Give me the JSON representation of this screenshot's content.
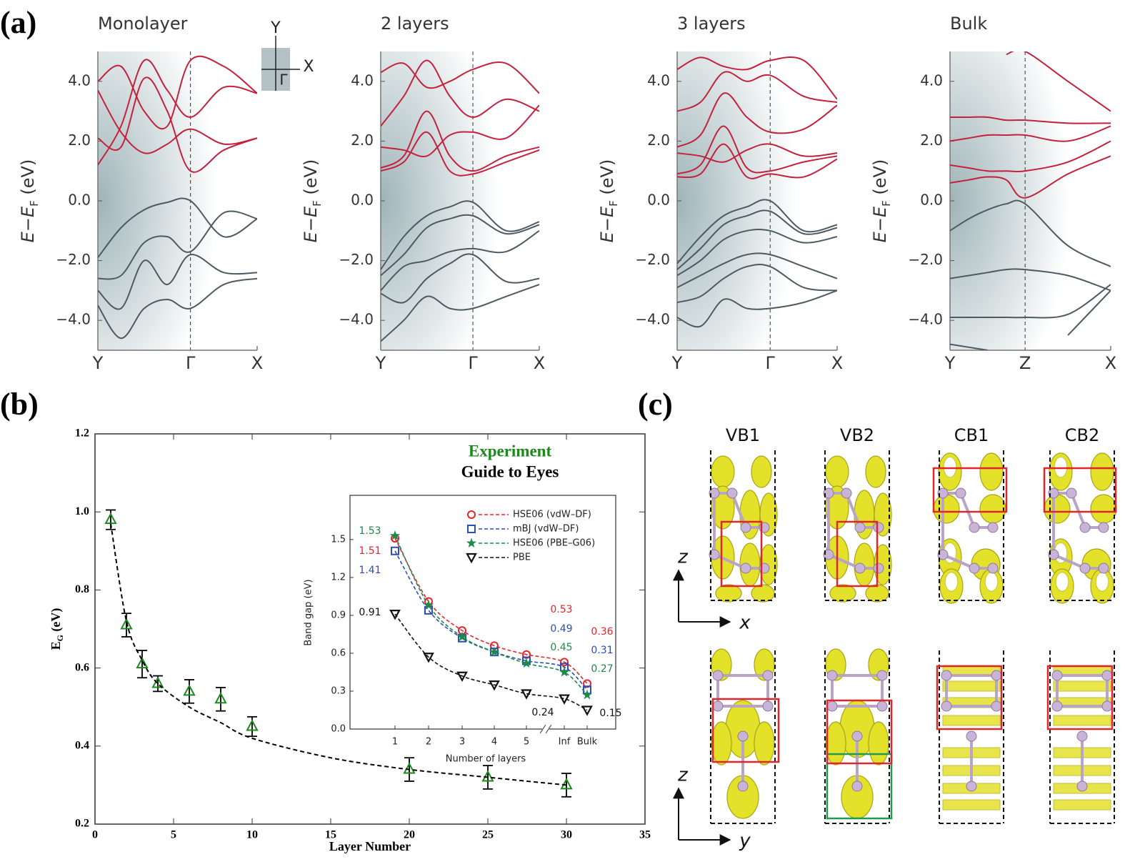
{
  "panel_labels": [
    "(a)",
    "(b)",
    "(c)"
  ],
  "axes_icon": [
    "Y",
    "X",
    "Γ"
  ],
  "chart_data": [
    {
      "type": "line",
      "title": "Monolayer",
      "ylabel": [
        "E−E",
        "F",
        " (eV)"
      ],
      "xlim": [
        0,
        1.72
      ],
      "xticks": [
        {
          "value": 0,
          "label": "Y"
        },
        {
          "value": 1,
          "label": "Γ"
        },
        {
          "value": 1.72,
          "label": "X"
        }
      ],
      "ylim": [
        -5,
        5
      ],
      "yticks": [
        {
          "value": 4,
          "label": "4.0"
        },
        {
          "value": 2,
          "label": "2.0"
        },
        {
          "value": 0,
          "label": "0.0"
        },
        {
          "value": -2,
          "label": "−2.0"
        },
        {
          "value": -4,
          "label": "−4.0"
        }
      ],
      "x": [
        0,
        0.25,
        0.5,
        0.75,
        1,
        1.36,
        1.72
      ],
      "series": [
        {
          "color": "#c4213d",
          "values": [
            1.2,
            2.5,
            4.7,
            3.7,
            2.8,
            3.8,
            3.6
          ]
        },
        {
          "color": "#c4213d",
          "values": [
            2.1,
            1.8,
            4.1,
            3.0,
            1.0,
            1.7,
            2.1
          ]
        },
        {
          "color": "#c4213d",
          "values": [
            3.7,
            2.3,
            1.6,
            1.9,
            2.4,
            1.9,
            2.1
          ]
        },
        {
          "color": "#c4213d",
          "values": [
            4.0,
            4.5,
            3.0,
            2.5,
            4.7,
            4.5,
            3.6
          ]
        },
        {
          "color": "#4d5a62",
          "values": [
            -1.9,
            -0.9,
            -0.3,
            -0.05,
            0.0,
            -1.2,
            -0.6
          ]
        },
        {
          "color": "#4d5a62",
          "values": [
            -2.6,
            -2.5,
            -1.4,
            -1.2,
            -1.7,
            -0.4,
            -0.6
          ]
        },
        {
          "color": "#4d5a62",
          "values": [
            -3.0,
            -3.6,
            -2.0,
            -2.8,
            -1.8,
            -2.4,
            -2.4
          ]
        },
        {
          "color": "#4d5a62",
          "values": [
            -3.5,
            -4.6,
            -3.6,
            -3.3,
            -3.6,
            -2.8,
            -2.6
          ]
        }
      ]
    },
    {
      "type": "line",
      "title": "2 layers",
      "ylabel": [
        "E−E",
        "F",
        " (eV)"
      ],
      "xlim": [
        0,
        1.72
      ],
      "xticks": [
        {
          "value": 0,
          "label": "Y"
        },
        {
          "value": 1,
          "label": "Γ"
        },
        {
          "value": 1.72,
          "label": "X"
        }
      ],
      "ylim": [
        -5,
        5
      ],
      "yticks": [
        {
          "value": 4,
          "label": "4.0"
        },
        {
          "value": 2,
          "label": "2.0"
        },
        {
          "value": 0,
          "label": "0.0"
        },
        {
          "value": -2,
          "label": "−2.0"
        },
        {
          "value": -4,
          "label": "−4.0"
        }
      ],
      "x": [
        0,
        0.25,
        0.5,
        0.75,
        1,
        1.36,
        1.72
      ],
      "series": [
        {
          "color": "#c4213d",
          "values": [
            1.0,
            1.3,
            2.3,
            1.0,
            0.9,
            1.3,
            1.7
          ]
        },
        {
          "color": "#c4213d",
          "values": [
            1.1,
            1.5,
            3.0,
            1.5,
            1.0,
            1.5,
            1.8
          ]
        },
        {
          "color": "#c4213d",
          "values": [
            1.8,
            1.7,
            1.5,
            2.2,
            2.3,
            2.1,
            3.2
          ]
        },
        {
          "color": "#c4213d",
          "values": [
            2.5,
            3.5,
            4.7,
            3.5,
            2.8,
            3.4,
            3.0
          ]
        },
        {
          "color": "#c4213d",
          "values": [
            4.3,
            4.6,
            3.8,
            4.0,
            4.4,
            4.6,
            3.6
          ]
        },
        {
          "color": "#4d5a62",
          "values": [
            -2.3,
            -1.2,
            -0.5,
            -0.2,
            -0.05,
            -1.0,
            -0.7
          ]
        },
        {
          "color": "#4d5a62",
          "values": [
            -2.5,
            -1.8,
            -0.9,
            -0.6,
            -0.5,
            -1.1,
            -0.8
          ]
        },
        {
          "color": "#4d5a62",
          "values": [
            -3.0,
            -2.2,
            -2.0,
            -1.7,
            -1.6,
            -1.7,
            -1.0
          ]
        },
        {
          "color": "#4d5a62",
          "values": [
            -3.1,
            -3.4,
            -2.6,
            -2.1,
            -1.8,
            -2.7,
            -2.6
          ]
        },
        {
          "color": "#4d5a62",
          "values": [
            -4.7,
            -4.0,
            -3.2,
            -3.6,
            -3.6,
            -3.2,
            -2.8
          ]
        }
      ]
    },
    {
      "type": "line",
      "title": "3 layers",
      "ylabel": [
        "E−E",
        "F",
        " (eV)"
      ],
      "xlim": [
        0,
        1.72
      ],
      "xticks": [
        {
          "value": 0,
          "label": "Y"
        },
        {
          "value": 1,
          "label": "Γ"
        },
        {
          "value": 1.72,
          "label": "X"
        }
      ],
      "ylim": [
        -5,
        5
      ],
      "yticks": [
        {
          "value": 4,
          "label": "4.0"
        },
        {
          "value": 2,
          "label": "2.0"
        },
        {
          "value": 0,
          "label": "0.0"
        },
        {
          "value": -2,
          "label": "−2.0"
        },
        {
          "value": -4,
          "label": "−4.0"
        }
      ],
      "x": [
        0,
        0.25,
        0.5,
        0.75,
        1,
        1.36,
        1.72
      ],
      "series": [
        {
          "color": "#c4213d",
          "values": [
            0.8,
            0.9,
            1.9,
            0.8,
            0.9,
            0.8,
            1.4
          ]
        },
        {
          "color": "#c4213d",
          "values": [
            0.9,
            1.2,
            2.5,
            1.1,
            1.0,
            1.3,
            1.5
          ]
        },
        {
          "color": "#c4213d",
          "values": [
            1.6,
            1.5,
            1.3,
            1.7,
            1.9,
            1.5,
            1.6
          ]
        },
        {
          "color": "#c4213d",
          "values": [
            1.8,
            2.2,
            3.6,
            2.8,
            2.3,
            2.4,
            3.2
          ]
        },
        {
          "color": "#c4213d",
          "values": [
            3.0,
            3.3,
            4.3,
            4.0,
            4.2,
            3.5,
            3.3
          ]
        },
        {
          "color": "#c4213d",
          "values": [
            4.4,
            4.8,
            4.5,
            4.4,
            4.7,
            4.7,
            3.4
          ]
        },
        {
          "color": "#4d5a62",
          "values": [
            -2.1,
            -1.2,
            -0.5,
            -0.2,
            0.0,
            -1.0,
            -0.8
          ]
        },
        {
          "color": "#4d5a62",
          "values": [
            -2.3,
            -1.6,
            -0.8,
            -0.5,
            -0.35,
            -1.1,
            -0.9
          ]
        },
        {
          "color": "#4d5a62",
          "values": [
            -2.5,
            -2.0,
            -1.3,
            -1.0,
            -1.0,
            -1.4,
            -1.2
          ]
        },
        {
          "color": "#4d5a62",
          "values": [
            -2.9,
            -2.5,
            -2.1,
            -1.8,
            -1.8,
            -2.2,
            -2.6
          ]
        },
        {
          "color": "#4d5a62",
          "values": [
            -3.4,
            -3.2,
            -2.6,
            -2.2,
            -2.2,
            -2.9,
            -3.0
          ]
        },
        {
          "color": "#4d5a62",
          "values": [
            -3.9,
            -4.2,
            -3.3,
            -3.6,
            -3.6,
            -3.4,
            -3.0
          ]
        }
      ]
    },
    {
      "type": "line",
      "title": "Bulk",
      "ylabel": [
        "E−E",
        "F",
        " (eV)"
      ],
      "xlim": [
        0,
        2.14
      ],
      "xticks": [
        {
          "value": 0,
          "label": "Y"
        },
        {
          "value": 1,
          "label": "Z"
        },
        {
          "value": 2.14,
          "label": "X"
        }
      ],
      "ylim": [
        -5,
        5
      ],
      "yticks": [
        {
          "value": 4,
          "label": "4.0"
        },
        {
          "value": 2,
          "label": "2.0"
        },
        {
          "value": 0,
          "label": "0.0"
        },
        {
          "value": -2,
          "label": "−2.0"
        },
        {
          "value": -4,
          "label": "−4.0"
        }
      ],
      "x": [
        0,
        0.25,
        0.5,
        0.75,
        1,
        1.57,
        2.14
      ],
      "series": [
        {
          "color": "#c4213d",
          "values": [
            0.6,
            0.7,
            0.8,
            0.7,
            0.1,
            0.9,
            1.5
          ]
        },
        {
          "color": "#c4213d",
          "values": [
            1.2,
            1.1,
            1.0,
            1.0,
            1.0,
            1.3,
            2.0
          ]
        },
        {
          "color": "#c4213d",
          "values": [
            2.0,
            2.1,
            2.2,
            2.2,
            2.2,
            2.0,
            2.5
          ]
        },
        {
          "color": "#c4213d",
          "values": [
            2.8,
            2.8,
            2.8,
            2.7,
            2.7,
            2.6,
            2.6
          ]
        },
        {
          "color": "#c4213d",
          "values": [
            null,
            null,
            null,
            4.9,
            5.0,
            4.0,
            3.0
          ]
        },
        {
          "color": "#4d5a62",
          "values": [
            -1.0,
            -0.6,
            -0.3,
            -0.1,
            -0.1,
            -1.5,
            -2.2
          ]
        },
        {
          "color": "#4d5a62",
          "values": [
            -2.6,
            -2.5,
            -2.4,
            -2.3,
            -2.3,
            -2.5,
            -3.0
          ]
        },
        {
          "color": "#4d5a62",
          "values": [
            -3.9,
            -3.9,
            -3.9,
            -3.9,
            -3.9,
            -3.8,
            -2.8
          ]
        },
        {
          "color": "#4d5a62",
          "values": [
            -4.8,
            -4.9,
            -5.0,
            null,
            null,
            -4.5,
            -3.0
          ]
        }
      ]
    },
    {
      "type": "scatter",
      "xlabel": "Layer Number",
      "ylabel": [
        "E",
        "G",
        " (eV)"
      ],
      "xlim": [
        0,
        35
      ],
      "xticks": [
        0,
        5,
        10,
        15,
        20,
        25,
        30,
        35
      ],
      "ylim": [
        0.2,
        1.2
      ],
      "yticks": [
        0.2,
        0.4,
        0.6,
        0.8,
        {
          "value": 1,
          "label": "1.0"
        },
        1.2
      ],
      "series": [
        {
          "name": "Experiment",
          "color": "#1a8a1a",
          "marker": "triangle",
          "x": [
            1,
            2,
            3,
            4,
            6,
            8,
            10,
            20,
            25,
            30
          ],
          "values": [
            0.98,
            0.71,
            0.61,
            0.56,
            0.54,
            0.52,
            0.45,
            0.34,
            0.32,
            0.3
          ],
          "errors": [
            0.025,
            0.03,
            0.035,
            0.02,
            0.03,
            0.03,
            0.025,
            0.03,
            0.03,
            0.03
          ]
        },
        {
          "name": "Guide to Eyes",
          "color": "#000000",
          "style": "dashed",
          "x": [
            1,
            2,
            3,
            4,
            6,
            8,
            10,
            15,
            20,
            25,
            30
          ],
          "values": [
            0.97,
            0.72,
            0.62,
            0.56,
            0.5,
            0.46,
            0.42,
            0.37,
            0.34,
            0.32,
            0.3
          ]
        }
      ]
    },
    {
      "type": "line",
      "xlabel": "Number of layers",
      "ylabel": "Band gap (eV)",
      "categories": [
        "1",
        "2",
        "3",
        "4",
        "5",
        "Inf",
        "Bulk"
      ],
      "ylim": [
        0,
        1.85
      ],
      "yticks": [
        {
          "value": 0,
          "label": "0.0"
        },
        0.3,
        0.6,
        0.9,
        1.2,
        1.5
      ],
      "series": [
        {
          "name": "HSE06 (vdW–DF)",
          "color": "#e8232a",
          "marker": "circle",
          "values": [
            1.51,
            1.01,
            0.78,
            0.66,
            0.59,
            0.53,
            0.36
          ],
          "value_labels": [
            "1.51",
            null,
            null,
            null,
            null,
            "0.53",
            "0.36"
          ]
        },
        {
          "name": "mBJ (vdW–DF)",
          "color": "#2b4fb5",
          "marker": "square",
          "values": [
            1.41,
            0.94,
            0.72,
            0.61,
            0.54,
            0.49,
            0.31
          ],
          "value_labels": [
            "1.41",
            null,
            null,
            null,
            null,
            "0.49",
            "0.31"
          ]
        },
        {
          "name": "HSE06 (PBE–G06)",
          "color": "#1c8a4a",
          "marker": "star",
          "values": [
            1.53,
            0.98,
            0.73,
            0.61,
            0.52,
            0.45,
            0.27
          ],
          "value_labels": [
            "1.53",
            null,
            null,
            null,
            null,
            "0.45",
            "0.27"
          ]
        },
        {
          "name": "PBE",
          "color": "#111111",
          "marker": "triangle-down",
          "values": [
            0.91,
            0.57,
            0.42,
            0.35,
            0.28,
            0.24,
            0.15
          ],
          "value_labels": [
            "0.91",
            null,
            null,
            null,
            null,
            "0.24",
            "0.15"
          ]
        }
      ]
    }
  ],
  "orbitals": {
    "columns": [
      "VB1",
      "VB2",
      "CB1",
      "CB2"
    ],
    "axes": [
      [
        "z",
        "x"
      ],
      [
        "z",
        "y"
      ]
    ]
  }
}
